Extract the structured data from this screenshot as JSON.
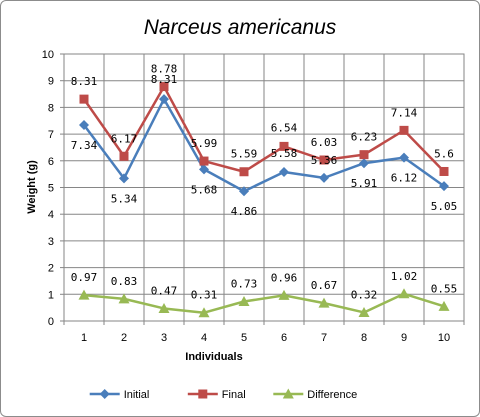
{
  "chart_data": {
    "type": "line",
    "title": "Narceus americanus",
    "xlabel": "Individuals",
    "ylabel": "Weight (g)",
    "ylim": [
      0,
      10
    ],
    "y_ticks": [
      0,
      1,
      2,
      3,
      4,
      5,
      6,
      7,
      8,
      9,
      10
    ],
    "categories": [
      "1",
      "2",
      "3",
      "4",
      "5",
      "6",
      "7",
      "8",
      "9",
      "10"
    ],
    "grid": true,
    "legend_position": "bottom",
    "series": [
      {
        "name": "Initial",
        "color": "#4a7ebb",
        "marker": "diamond",
        "values": [
          7.34,
          5.34,
          8.31,
          5.68,
          4.86,
          5.58,
          5.36,
          5.91,
          6.12,
          5.05
        ],
        "labels": [
          "7.34",
          "5.34",
          "8.31",
          "5.68",
          "4.86",
          "5.58",
          "5.36",
          "5.91",
          "6.12",
          "5.05"
        ]
      },
      {
        "name": "Final",
        "color": "#be4b48",
        "marker": "square",
        "values": [
          8.31,
          6.17,
          8.78,
          5.99,
          5.59,
          6.54,
          6.03,
          6.23,
          7.14,
          5.6
        ],
        "labels": [
          "8.31",
          "6.17",
          "8.78",
          "5.99",
          "5.59",
          "6.54",
          "6.03",
          "6.23",
          "7.14",
          "5.6"
        ]
      },
      {
        "name": "Difference",
        "color": "#98b954",
        "marker": "triangle",
        "values": [
          0.97,
          0.83,
          0.47,
          0.31,
          0.73,
          0.96,
          0.67,
          0.32,
          1.02,
          0.55
        ],
        "labels": [
          "0.97",
          "0.83",
          "0.47",
          "0.31",
          "0.73",
          "0.96",
          "0.67",
          "0.32",
          "1.02",
          "0.55"
        ]
      }
    ]
  }
}
